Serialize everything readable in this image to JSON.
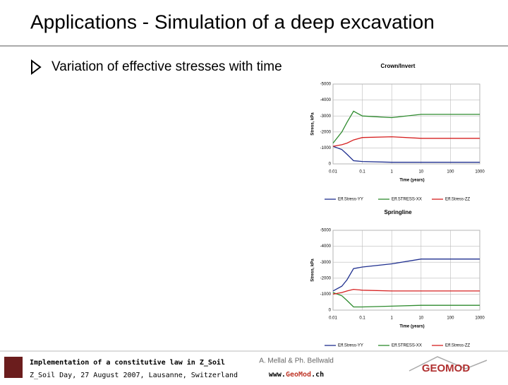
{
  "header": {
    "title": "Applications - Simulation of a deep excavation"
  },
  "bullet": "Variation of effective stresses with time",
  "chart_data": [
    {
      "type": "line",
      "title": "Crown/Invert",
      "x_label": "Time (years)",
      "y_label": "Stress, kPa",
      "x": [
        0.01,
        0.02,
        0.03,
        0.05,
        0.1,
        1,
        10,
        100,
        1000
      ],
      "xlim": [
        0.01,
        1000
      ],
      "xticks": [
        0.01,
        0.1,
        1,
        10,
        100,
        1000
      ],
      "xscale": "log",
      "ylim": [
        0,
        -5000
      ],
      "yticks": [
        0,
        -1000,
        -2000,
        -3000,
        -4000,
        -5000
      ],
      "grid": true,
      "series": [
        {
          "name": "Eff.Stress-YY",
          "color": "#1f2f8f",
          "values": [
            -1100,
            -900,
            -600,
            -200,
            -150,
            -100,
            -100,
            -100,
            -100
          ]
        },
        {
          "name": "Eff.STRESS-XX",
          "color": "#2e8b2e",
          "values": [
            -1300,
            -2000,
            -2600,
            -3300,
            -3000,
            -2900,
            -3100,
            -3100,
            -3100
          ]
        },
        {
          "name": "Eff.Stress-ZZ",
          "color": "#d62020",
          "values": [
            -1100,
            -1200,
            -1300,
            -1500,
            -1650,
            -1700,
            -1600,
            -1600,
            -1600
          ]
        }
      ]
    },
    {
      "type": "line",
      "title": "Springline",
      "x_label": "Time (years)",
      "y_label": "Stress, kPa",
      "x": [
        0.01,
        0.02,
        0.03,
        0.05,
        0.1,
        1,
        10,
        100,
        1000
      ],
      "xlim": [
        0.01,
        1000
      ],
      "xticks": [
        0.01,
        0.1,
        1,
        10,
        100,
        1000
      ],
      "xscale": "log",
      "ylim": [
        0,
        -5000
      ],
      "yticks": [
        0,
        -1000,
        -2000,
        -3000,
        -4000,
        -5000
      ],
      "grid": true,
      "series": [
        {
          "name": "Eff.Stress-YY",
          "color": "#1f2f8f",
          "values": [
            -1200,
            -1500,
            -1900,
            -2600,
            -2700,
            -2900,
            -3200,
            -3200,
            -3200
          ]
        },
        {
          "name": "Eff.STRESS-XX",
          "color": "#2e8b2e",
          "values": [
            -1100,
            -900,
            -600,
            -200,
            -200,
            -250,
            -300,
            -300,
            -300
          ]
        },
        {
          "name": "Eff.Stress-ZZ",
          "color": "#d62020",
          "values": [
            -1000,
            -1100,
            -1200,
            -1300,
            -1250,
            -1200,
            -1200,
            -1200,
            -1200
          ]
        }
      ]
    }
  ],
  "footer": {
    "talk": "Implementation of a constitutive law in Z_Soil",
    "event": "Z_Soil Day, 27 August 2007, Lausanne, Switzerland",
    "authors": "A. Mellal & Ph. Bellwald",
    "url": [
      "www.",
      "Geo",
      "Mod",
      ".ch"
    ],
    "logo": "GEOMOD"
  }
}
